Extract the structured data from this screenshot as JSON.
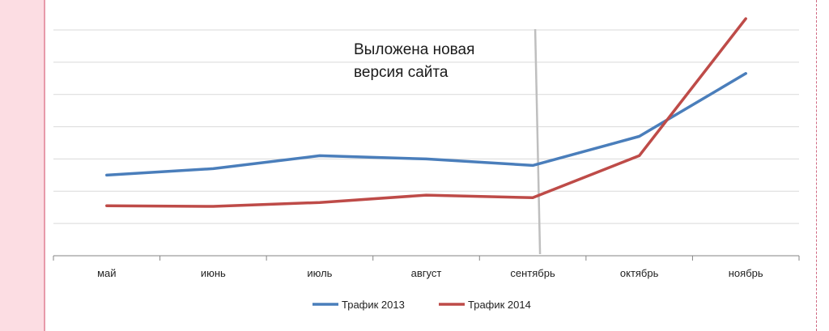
{
  "chart_data": {
    "type": "line",
    "categories": [
      "май",
      "июнь",
      "июль",
      "август",
      "сентябрь",
      "октябрь",
      "ноябрь"
    ],
    "series": [
      {
        "name": "Трафик 2013",
        "color": "#4a7ebb",
        "values": [
          2.5,
          2.7,
          3.1,
          3.0,
          2.8,
          3.7,
          5.65
        ]
      },
      {
        "name": "Трафик 2014",
        "color": "#be4b48",
        "values": [
          1.55,
          1.53,
          1.65,
          1.88,
          1.8,
          3.1,
          7.35
        ]
      }
    ],
    "ylim": [
      0,
      7
    ],
    "grid": true,
    "legend_position": "bottom",
    "marker": {
      "category": "сентябрь",
      "color": "#bfbfbf"
    },
    "annotation": {
      "lines": [
        "Выложена новая",
        "версия сайта"
      ]
    }
  }
}
